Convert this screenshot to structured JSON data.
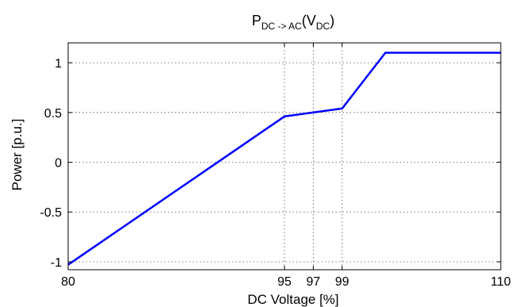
{
  "chart_data": {
    "type": "line",
    "title": {
      "main": "P",
      "main_sub": "DC -> AC",
      "arg_open": "(V",
      "arg_sub": "DC",
      "arg_close": ")"
    },
    "xlabel": "DC Voltage [%]",
    "ylabel": "Power [p.u.]",
    "xlim": [
      80,
      110
    ],
    "ylim": [
      -1.08,
      1.2
    ],
    "xticks": [
      80,
      95,
      97,
      99,
      110
    ],
    "xtick_labels": [
      "80",
      "95",
      "97",
      "99",
      "110"
    ],
    "yticks": [
      -1,
      -0.5,
      0,
      0.5,
      1
    ],
    "ytick_labels": [
      "-1",
      "-0.5",
      "0",
      "0.5",
      "1"
    ],
    "grid": true,
    "series": [
      {
        "color": "#0000ff",
        "x": [
          80,
          95,
          99,
          102,
          110
        ],
        "y": [
          -1.03,
          0.46,
          0.54,
          1.1,
          1.1
        ]
      }
    ]
  }
}
